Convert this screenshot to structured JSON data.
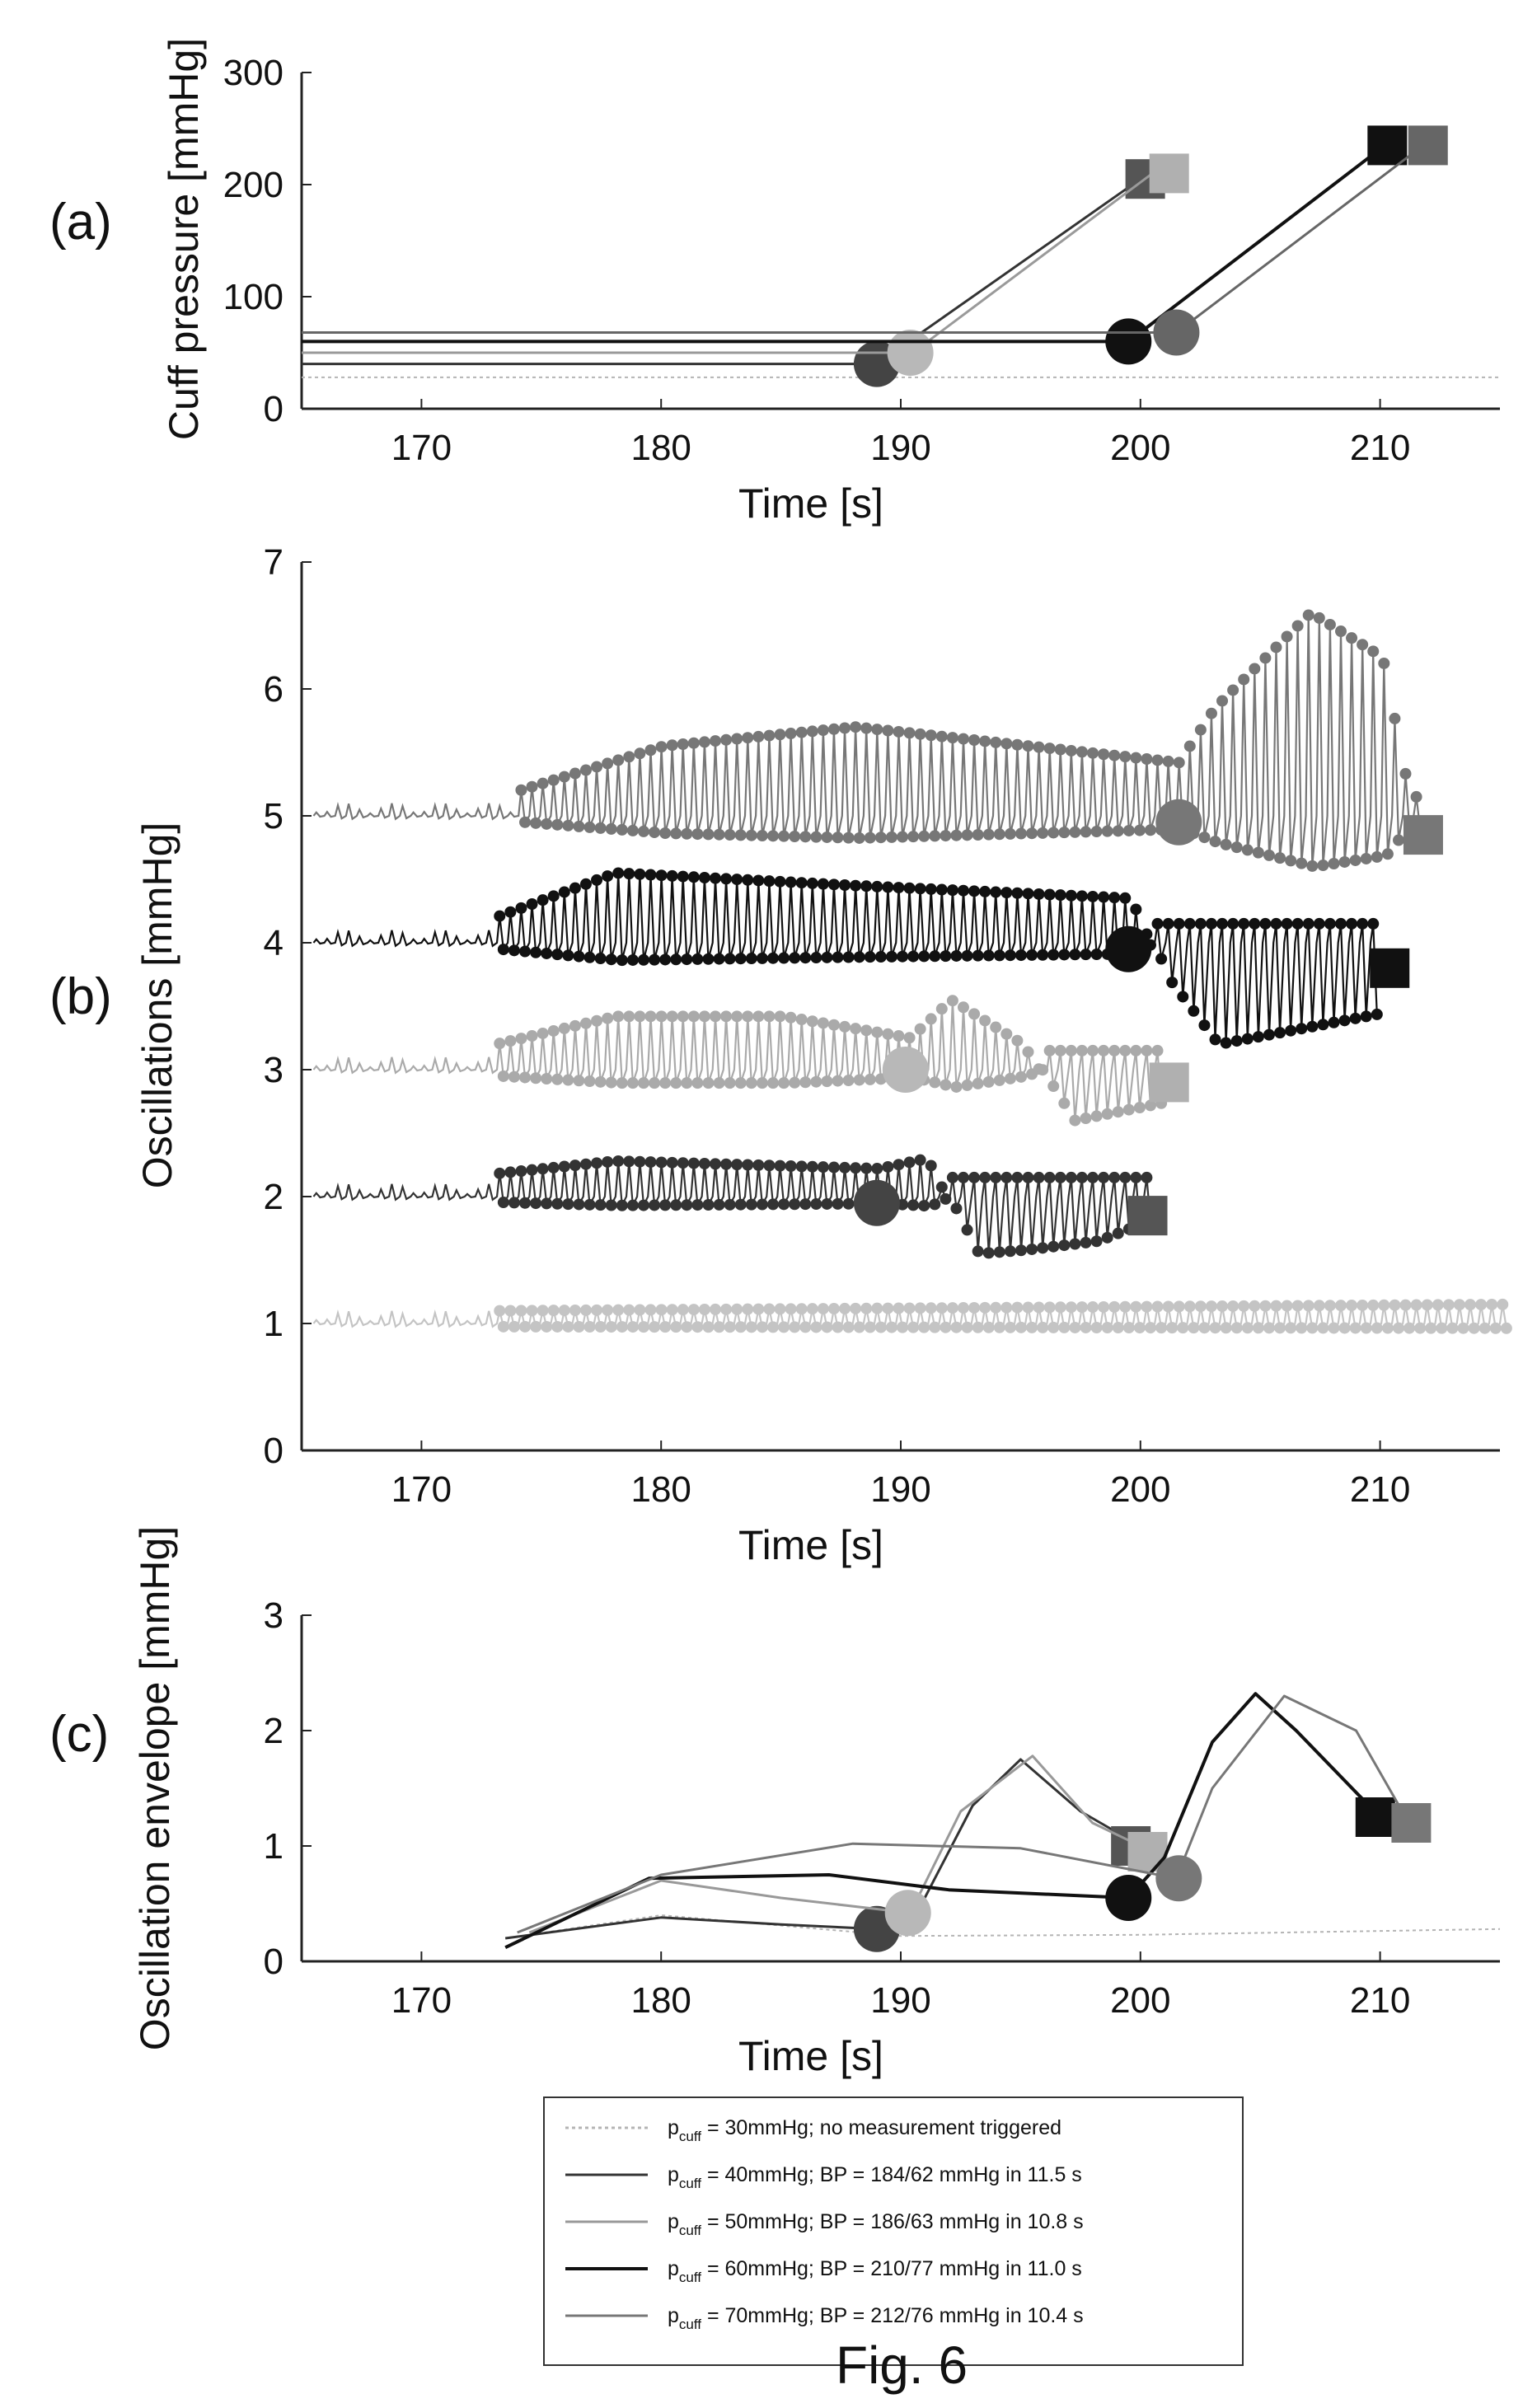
{
  "figure": {
    "caption": "Fig. 6"
  },
  "chart_data": [
    {
      "id": "a",
      "type": "line",
      "panel_label": "(a)",
      "xlabel": "Time [s]",
      "ylabel": "Cuff pressure [mmHg]",
      "xlim": [
        165,
        215
      ],
      "ylim": [
        0,
        300
      ],
      "xticks": [
        170,
        180,
        190,
        200,
        210
      ],
      "yticks": [
        0,
        100,
        200,
        300
      ],
      "grid": false,
      "series": [
        {
          "id": "s30",
          "color": "#b4b4b4",
          "dash": "4 4",
          "width": 2,
          "points": [
            [
              165,
              28
            ],
            [
              215,
              28
            ]
          ],
          "markers": []
        },
        {
          "id": "s40",
          "color": "#333333",
          "width": 3,
          "points": [
            [
              165,
              40
            ],
            [
              189,
              40
            ],
            [
              200,
              205
            ]
          ],
          "markers": [
            {
              "shape": "circle",
              "x": 189,
              "y": 40,
              "color": "#444444"
            },
            {
              "shape": "square",
              "x": 200.2,
              "y": 205,
              "color": "#555555"
            }
          ]
        },
        {
          "id": "s50",
          "color": "#9a9a9a",
          "width": 3,
          "points": [
            [
              165,
              50
            ],
            [
              190.5,
              50
            ],
            [
              200.5,
              210
            ]
          ],
          "markers": [
            {
              "shape": "circle",
              "x": 190.4,
              "y": 50,
              "color": "#b8b8b8"
            },
            {
              "shape": "square",
              "x": 201.2,
              "y": 210,
              "color": "#b0b0b0"
            }
          ]
        },
        {
          "id": "s60",
          "color": "#111111",
          "width": 4,
          "points": [
            [
              165,
              60
            ],
            [
              199.5,
              60
            ],
            [
              210.2,
              235
            ]
          ],
          "markers": [
            {
              "shape": "circle",
              "x": 199.5,
              "y": 60,
              "color": "#111111"
            },
            {
              "shape": "square",
              "x": 210.3,
              "y": 235,
              "color": "#111111"
            }
          ]
        },
        {
          "id": "s70",
          "color": "#666666",
          "width": 3,
          "points": [
            [
              165,
              68
            ],
            [
              201.5,
              68
            ],
            [
              211.8,
              235
            ]
          ],
          "markers": [
            {
              "shape": "circle",
              "x": 201.5,
              "y": 68,
              "color": "#666666"
            },
            {
              "shape": "square",
              "x": 212,
              "y": 235,
              "color": "#666666"
            }
          ]
        }
      ]
    },
    {
      "id": "b",
      "type": "line",
      "panel_label": "(b)",
      "xlabel": "Time [s]",
      "ylabel": "Oscillations [mmHg]",
      "xlim": [
        165,
        215
      ],
      "ylim": [
        0,
        7
      ],
      "xticks": [
        170,
        180,
        190,
        200,
        210
      ],
      "yticks": [
        0,
        1,
        2,
        3,
        4,
        5,
        6,
        7
      ],
      "grid": false,
      "oscillation_series": [
        {
          "id": "s30",
          "color": "#c4c4c4",
          "baseline": 1.0,
          "start": 165.5,
          "end": 215,
          "segments": [
            [
              173,
              0.1
            ],
            [
              215,
              0.15
            ]
          ],
          "markers": []
        },
        {
          "id": "s40",
          "color": "#333333",
          "baseline": 2.0,
          "start": 165.5,
          "end": 200.4,
          "segments": [
            [
              173,
              0.18
            ],
            [
              178,
              0.28
            ],
            [
              189,
              0.22
            ],
            [
              191,
              0.3
            ],
            [
              193,
              -0.45
            ],
            [
              195,
              -0.42
            ],
            [
              198,
              -0.35
            ],
            [
              200,
              -0.2
            ]
          ],
          "markers": [
            {
              "shape": "circle",
              "x": 189,
              "y": 1.95,
              "color": "#444444"
            },
            {
              "shape": "square",
              "x": 200.3,
              "y": 1.85,
              "color": "#555555"
            }
          ]
        },
        {
          "id": "s50",
          "color": "#aaaaaa",
          "baseline": 3.0,
          "start": 165.5,
          "end": 201,
          "segments": [
            [
              173,
              0.2
            ],
            [
              178,
              0.42
            ],
            [
              185,
              0.42
            ],
            [
              190.3,
              0.25
            ],
            [
              192,
              0.55
            ],
            [
              195,
              0.2
            ],
            [
              197,
              -0.4
            ],
            [
              201,
              -0.25
            ]
          ],
          "markers": [
            {
              "shape": "circle",
              "x": 190.2,
              "y": 3.0,
              "color": "#b8b8b8"
            },
            {
              "shape": "square",
              "x": 201.2,
              "y": 2.9,
              "color": "#b0b0b0"
            }
          ]
        },
        {
          "id": "s60",
          "color": "#111111",
          "baseline": 4.0,
          "start": 165.5,
          "end": 210,
          "segments": [
            [
              173,
              0.2
            ],
            [
              178,
              0.55
            ],
            [
              188,
              0.45
            ],
            [
              199.5,
              0.35
            ],
            [
              201,
              -0.3
            ],
            [
              203,
              -0.8
            ],
            [
              210,
              -0.55
            ]
          ],
          "markers": [
            {
              "shape": "circle",
              "x": 199.5,
              "y": 3.95,
              "color": "#111111"
            },
            {
              "shape": "square",
              "x": 210.4,
              "y": 3.8,
              "color": "#111111"
            }
          ]
        },
        {
          "id": "s70",
          "color": "#777777",
          "baseline": 5.0,
          "start": 165.5,
          "end": 211.5,
          "segments": [
            [
              174,
              0.2
            ],
            [
              180,
              0.55
            ],
            [
              188,
              0.7
            ],
            [
              201.5,
              0.42
            ],
            [
              203,
              0.85
            ],
            [
              207,
              1.6
            ],
            [
              210,
              1.25
            ],
            [
              211.5,
              -0.2
            ]
          ],
          "markers": [
            {
              "shape": "circle",
              "x": 201.6,
              "y": 4.95,
              "color": "#777777"
            },
            {
              "shape": "square",
              "x": 211.8,
              "y": 4.85,
              "color": "#777777"
            }
          ]
        }
      ]
    },
    {
      "id": "c",
      "type": "line",
      "panel_label": "(c)",
      "xlabel": "Time [s]",
      "ylabel": "Oscillation envelope [mmHg]",
      "xlim": [
        165,
        215
      ],
      "ylim": [
        0,
        3
      ],
      "xticks": [
        170,
        180,
        190,
        200,
        210
      ],
      "yticks": [
        0,
        1,
        2,
        3
      ],
      "grid": false,
      "series": [
        {
          "id": "s30",
          "color": "#b4b4b4",
          "dash": "4 4",
          "width": 2,
          "points": [
            [
              173.5,
              0.2
            ],
            [
              180,
              0.4
            ],
            [
              190,
              0.22
            ],
            [
              200,
              0.23
            ],
            [
              215,
              0.28
            ]
          ],
          "markers": []
        },
        {
          "id": "s40",
          "color": "#333333",
          "width": 3,
          "points": [
            [
              173.5,
              0.2
            ],
            [
              180,
              0.38
            ],
            [
              185,
              0.32
            ],
            [
              189,
              0.28
            ],
            [
              191,
              0.55
            ],
            [
              193,
              1.35
            ],
            [
              195,
              1.75
            ],
            [
              197.5,
              1.3
            ],
            [
              200,
              1.0
            ]
          ],
          "markers": [
            {
              "shape": "circle",
              "x": 189,
              "y": 0.28,
              "color": "#444444"
            },
            {
              "shape": "square",
              "x": 199.6,
              "y": 1.0,
              "color": "#555555"
            }
          ]
        },
        {
          "id": "s50",
          "color": "#999999",
          "width": 3,
          "points": [
            [
              174.5,
              0.25
            ],
            [
              180,
              0.7
            ],
            [
              185,
              0.55
            ],
            [
              190.4,
              0.42
            ],
            [
              192.5,
              1.3
            ],
            [
              195.5,
              1.78
            ],
            [
              198,
              1.2
            ],
            [
              200.5,
              0.95
            ]
          ],
          "markers": [
            {
              "shape": "circle",
              "x": 190.3,
              "y": 0.42,
              "color": "#b8b8b8"
            },
            {
              "shape": "square",
              "x": 200.3,
              "y": 0.95,
              "color": "#b0b0b0"
            }
          ]
        },
        {
          "id": "s60",
          "color": "#111111",
          "width": 4,
          "points": [
            [
              173.5,
              0.12
            ],
            [
              179.5,
              0.72
            ],
            [
              187,
              0.75
            ],
            [
              192,
              0.62
            ],
            [
              199.5,
              0.55
            ],
            [
              201,
              0.9
            ],
            [
              203,
              1.9
            ],
            [
              204.8,
              2.32
            ],
            [
              206.5,
              2.0
            ],
            [
              210,
              1.25
            ]
          ],
          "markers": [
            {
              "shape": "circle",
              "x": 199.5,
              "y": 0.55,
              "color": "#111111"
            },
            {
              "shape": "square",
              "x": 209.8,
              "y": 1.25,
              "color": "#111111"
            }
          ]
        },
        {
          "id": "s70",
          "color": "#777777",
          "width": 3,
          "points": [
            [
              174,
              0.25
            ],
            [
              180,
              0.75
            ],
            [
              188,
              1.02
            ],
            [
              195,
              0.98
            ],
            [
              201.5,
              0.72
            ],
            [
              203,
              1.5
            ],
            [
              206,
              2.3
            ],
            [
              209,
              2.0
            ],
            [
              211.2,
              1.2
            ]
          ],
          "markers": [
            {
              "shape": "circle",
              "x": 201.6,
              "y": 0.72,
              "color": "#777777"
            },
            {
              "shape": "square",
              "x": 211.3,
              "y": 1.2,
              "color": "#777777"
            }
          ]
        }
      ]
    }
  ],
  "legend": {
    "entries": [
      {
        "id": "s30",
        "color": "#b4b4b4",
        "dash": "4 4",
        "prefix": "p",
        "subscript": "cuff",
        "text": " =  30mmHg; no measurement triggered"
      },
      {
        "id": "s40",
        "color": "#333333",
        "prefix": "p",
        "subscript": "cuff",
        "text": " =  40mmHg; BP = 184/62 mmHg in 11.5 s"
      },
      {
        "id": "s50",
        "color": "#999999",
        "prefix": "p",
        "subscript": "cuff",
        "text": " =  50mmHg; BP = 186/63 mmHg in 10.8 s"
      },
      {
        "id": "s60",
        "color": "#111111",
        "prefix": "p",
        "subscript": "cuff",
        "text": " =  60mmHg; BP = 210/77 mmHg in 11.0 s"
      },
      {
        "id": "s70",
        "color": "#777777",
        "prefix": "p",
        "subscript": "cuff",
        "text": " =  70mmHg; BP = 212/76 mmHg in 10.4 s"
      }
    ]
  }
}
